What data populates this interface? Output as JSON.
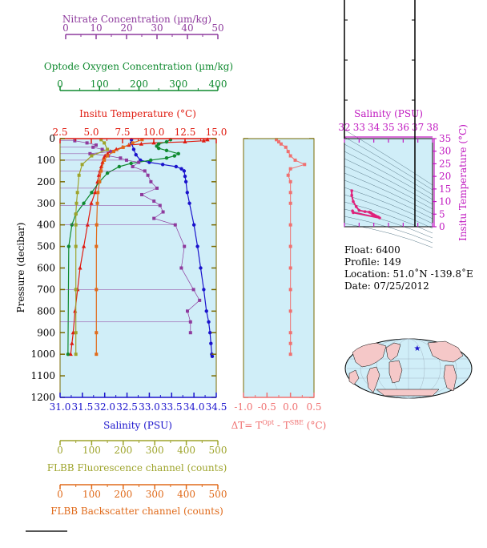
{
  "colors": {
    "nitrate": "#8e3a9d",
    "oxygen": "#0f8a2f",
    "temperature": "#e01b10",
    "salinity": "#1a12cc",
    "fluorescence": "#9ea42c",
    "backscatter": "#e06a1a",
    "delta": "#f07070",
    "axis_brown": "#7a6a00",
    "plot_bg": "#d0eef8"
  },
  "axes": {
    "nitrate": {
      "title": "Nitrate Concentration (µm/kg)",
      "ticks": [
        "0",
        "10",
        "20",
        "30",
        "40",
        "50"
      ]
    },
    "oxygen": {
      "title": "Optode Oxygen Concentration (µm/kg)",
      "ticks": [
        "0",
        "100",
        "200",
        "300",
        "400"
      ]
    },
    "temperature": {
      "title": "Insitu Temperature (°C)",
      "ticks": [
        "2.5",
        "5.0",
        "7.5",
        "10.0",
        "12.5",
        "15.0"
      ]
    },
    "pressure": {
      "title": "Pressure (decibar)",
      "ticks": [
        "0",
        "100",
        "200",
        "300",
        "400",
        "500",
        "600",
        "700",
        "800",
        "900",
        "1000",
        "1100",
        "1200"
      ]
    },
    "salinity": {
      "title": "Salinity (PSU)",
      "ticks": [
        "31.0",
        "31.5",
        "32.0",
        "32.5",
        "33.0",
        "33.5",
        "34.0",
        "34.5"
      ]
    },
    "fluorescence": {
      "title": "FLBB Fluorescence channel (counts)",
      "ticks": [
        "0",
        "100",
        "200",
        "300",
        "400",
        "500"
      ]
    },
    "backscatter": {
      "title": "FLBB Backscatter channel (counts)",
      "ticks": [
        "0",
        "100",
        "200",
        "300",
        "400",
        "500"
      ]
    },
    "delta": {
      "title": "ΔT= TOpt - TSBE (°C)",
      "ticks": [
        "-1.0",
        "-0.5",
        "0.0",
        "0.5"
      ]
    },
    "ts_salinity": {
      "title": "Salinity (PSU)",
      "ticks": [
        "32",
        "33",
        "34",
        "35",
        "36",
        "37",
        "38"
      ]
    },
    "ts_temperature": {
      "title": "Insitu Temperature (°C)",
      "ticks": [
        "0",
        "5",
        "10",
        "15",
        "20",
        "25",
        "30",
        "35"
      ]
    }
  },
  "info": {
    "float": "Float:  6400",
    "profile": "Profile:  149",
    "location": "Location:  51.0˚N  -139.8˚E",
    "date": "Date:  07/25/2012"
  },
  "chart_data": [
    {
      "type": "line",
      "title": "",
      "ylabel": "Pressure (decibar)",
      "ylim": [
        1200,
        0
      ],
      "series": [
        {
          "name": "Insitu Temperature (°C)",
          "x_axis": "temperature",
          "xlim": [
            2.5,
            15.0
          ],
          "x": [
            14.3,
            14.0,
            12.5,
            10.0,
            9.0,
            8.0,
            7.5,
            7.0,
            6.5,
            6.3,
            6.1,
            6.0,
            5.9,
            5.8,
            5.7,
            5.6,
            5.5,
            5.3,
            5.0,
            4.7,
            4.4,
            4.1,
            3.9,
            3.7,
            3.55,
            3.45,
            3.35
          ],
          "y": [
            5,
            10,
            15,
            20,
            25,
            30,
            40,
            50,
            60,
            70,
            80,
            90,
            110,
            130,
            150,
            170,
            200,
            250,
            300,
            400,
            500,
            600,
            700,
            800,
            900,
            950,
            1000
          ]
        },
        {
          "name": "Salinity (PSU)",
          "x_axis": "salinity",
          "xlim": [
            31.0,
            34.5
          ],
          "x": [
            32.6,
            32.6,
            32.65,
            32.7,
            32.8,
            33.0,
            33.3,
            33.6,
            33.72,
            33.78,
            33.8,
            33.82,
            33.85,
            33.9,
            34.0,
            34.08,
            34.15,
            34.22,
            34.28,
            34.33,
            34.36,
            34.38,
            34.4,
            34.41
          ],
          "y": [
            5,
            20,
            50,
            75,
            100,
            110,
            120,
            130,
            140,
            150,
            175,
            200,
            250,
            300,
            400,
            500,
            600,
            700,
            800,
            850,
            900,
            950,
            1000,
            1010
          ]
        },
        {
          "name": "Optode Oxygen Concentration (µm/kg)",
          "x_axis": "oxygen",
          "xlim": [
            0,
            400
          ],
          "x": [
            280,
            270,
            250,
            245,
            250,
            270,
            300,
            290,
            270,
            230,
            180,
            150,
            120,
            100,
            80,
            60,
            40,
            30,
            22,
            20
          ],
          "y": [
            5,
            15,
            25,
            35,
            45,
            55,
            70,
            80,
            90,
            100,
            115,
            130,
            160,
            200,
            250,
            300,
            350,
            400,
            500,
            1000
          ]
        },
        {
          "name": "Nitrate Concentration (µm/kg)",
          "x_axis": "nitrate",
          "xlim": [
            0,
            50
          ],
          "x": [
            3,
            7,
            10,
            9,
            12,
            15,
            8,
            14,
            18,
            20,
            24,
            22,
            26,
            27,
            28,
            30,
            25,
            29,
            31,
            32,
            29,
            36,
            39,
            38,
            42,
            44,
            40,
            41,
            41
          ],
          "y": [
            10,
            20,
            30,
            40,
            50,
            60,
            70,
            80,
            90,
            100,
            110,
            130,
            150,
            170,
            200,
            230,
            260,
            290,
            310,
            340,
            370,
            400,
            500,
            600,
            700,
            750,
            800,
            850,
            900
          ]
        },
        {
          "name": "FLBB Fluorescence channel (counts)",
          "x_axis": "fluorescence",
          "xlim": [
            0,
            500
          ],
          "x": [
            130,
            140,
            150,
            100,
            70,
            60,
            55,
            52,
            50,
            50,
            50,
            50,
            50,
            50
          ],
          "y": [
            5,
            20,
            50,
            80,
            120,
            170,
            250,
            300,
            350,
            400,
            500,
            700,
            900,
            1000
          ]
        },
        {
          "name": "FLBB Backscatter channel (counts)",
          "x_axis": "backscatter",
          "xlim": [
            0,
            500
          ],
          "x": [
            260,
            230,
            200,
            170,
            150,
            140,
            130,
            125,
            120,
            118,
            116,
            115,
            115,
            115,
            115
          ],
          "y": [
            5,
            20,
            40,
            60,
            80,
            100,
            150,
            200,
            250,
            300,
            400,
            500,
            700,
            900,
            1000
          ]
        }
      ]
    },
    {
      "type": "line",
      "title": "",
      "xlabel": "ΔT= TOpt - TSBE (°C)",
      "xlim": [
        -1.0,
        0.5
      ],
      "ylim": [
        1200,
        0
      ],
      "series": [
        {
          "name": "ΔT",
          "x": [
            -0.3,
            -0.25,
            -0.2,
            -0.1,
            -0.05,
            0.0,
            0.1,
            0.3,
            0.0,
            -0.05,
            0.0,
            0.0,
            0.0,
            0.0,
            0.0,
            0.0,
            0.0,
            0.0,
            0.0,
            0.0,
            0.0
          ],
          "y": [
            5,
            15,
            25,
            40,
            60,
            80,
            100,
            120,
            140,
            170,
            200,
            250,
            300,
            400,
            500,
            600,
            700,
            800,
            900,
            950,
            1000
          ]
        }
      ]
    },
    {
      "type": "scatter",
      "title": "",
      "xlabel": "Salinity (PSU)",
      "ylabel": "Insitu Temperature (°C)",
      "xlim": [
        32,
        38
      ],
      "ylim": [
        0,
        35
      ],
      "series": [
        {
          "name": "T-S profile",
          "x": [
            32.5,
            32.5,
            32.6,
            32.8,
            33.0,
            33.4,
            33.7,
            33.8,
            33.9,
            34.0,
            34.1,
            34.2,
            34.3,
            34.4,
            32.6,
            32.55
          ],
          "y": [
            14.3,
            12.5,
            10.0,
            8.0,
            6.5,
            6.0,
            5.8,
            5.5,
            5.0,
            4.7,
            4.4,
            4.1,
            3.9,
            3.5,
            5.6,
            6.3
          ]
        }
      ]
    }
  ]
}
